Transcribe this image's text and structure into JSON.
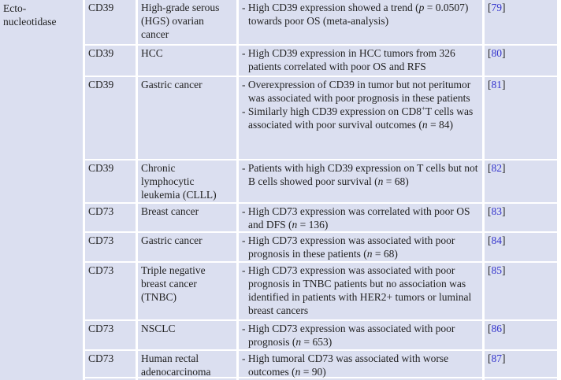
{
  "table": {
    "category": "Ecto-\nnucleotidase",
    "bracket_open": "[",
    "bracket_close": "]",
    "colors": {
      "cell_bg": "#dbdff0",
      "ref_number": "#3333cc",
      "text": "#222222",
      "gap": "#ffffff"
    },
    "rows": [
      {
        "enzyme": "CD39",
        "cancer": "High-grade serous\n(HGS) ovarian\ncancer",
        "ref": "79",
        "findings": [
          [
            {
              "t": "- High CD39 expression showed a trend ("
            },
            {
              "t": "p",
              "i": true
            },
            {
              "t": " = 0.0507) towards poor OS (meta-analysis)"
            }
          ]
        ]
      },
      {
        "enzyme": "CD39",
        "cancer": "HCC",
        "ref": "80",
        "findings": [
          [
            {
              "t": "- High CD39 expression in HCC tumors from 326 patients correlated with poor OS and RFS"
            }
          ]
        ]
      },
      {
        "enzyme": "CD39",
        "cancer": "Gastric cancer",
        "ref": "81",
        "findings": [
          [
            {
              "t": "- Overexpression of CD39 in tumor but not peritumor was associated with poor prognosis in these patients"
            }
          ],
          [
            {
              "t": "- Similarly high CD39 expression on CD8"
            },
            {
              "t": "+",
              "sup": true
            },
            {
              "t": "T cells was associated with poor survival outcomes ("
            },
            {
              "t": "n",
              "i": true
            },
            {
              "t": " = 84)"
            }
          ]
        ]
      },
      {
        "enzyme": "CD39",
        "cancer": "Chronic\nlymphocytic\nleukemia (CLLL)",
        "ref": "82",
        "findings": [
          [
            {
              "t": "- Patients with high CD39 expression on T cells but not B cells showed poor survival ("
            },
            {
              "t": "n",
              "i": true
            },
            {
              "t": " = 68)"
            }
          ]
        ]
      },
      {
        "enzyme": "CD73",
        "cancer": "Breast cancer",
        "ref": "83",
        "findings": [
          [
            {
              "t": "- High CD73 expression was correlated with poor OS and DFS ("
            },
            {
              "t": "n",
              "i": true
            },
            {
              "t": " = 136)"
            }
          ]
        ]
      },
      {
        "enzyme": "CD73",
        "cancer": "Gastric cancer",
        "ref": "84",
        "findings": [
          [
            {
              "t": "- High CD73 expression was associated with poor prognosis in these patients ("
            },
            {
              "t": "n",
              "i": true
            },
            {
              "t": " = 68)"
            }
          ]
        ]
      },
      {
        "enzyme": "CD73",
        "cancer": "Triple negative\nbreast cancer\n(TNBC)",
        "ref": "85",
        "findings": [
          [
            {
              "t": "- High CD73 expression was associated with poor prognosis in TNBC patients but no association was identified in patients with HER2+ tumors or luminal breast cancers"
            }
          ]
        ]
      },
      {
        "enzyme": "CD73",
        "cancer": "NSCLC",
        "ref": "86",
        "findings": [
          [
            {
              "t": "- High CD73 expression was associated with poor prognosis ("
            },
            {
              "t": "n",
              "i": true
            },
            {
              "t": " = 653)"
            }
          ]
        ]
      },
      {
        "enzyme": "CD73",
        "cancer": "Human rectal\nadenocarcinoma",
        "ref": "87",
        "findings": [
          [
            {
              "t": "- High tumoral CD73 was associated with worse outcomes ("
            },
            {
              "t": "n",
              "i": true
            },
            {
              "t": " = 90)"
            }
          ]
        ]
      }
    ]
  }
}
